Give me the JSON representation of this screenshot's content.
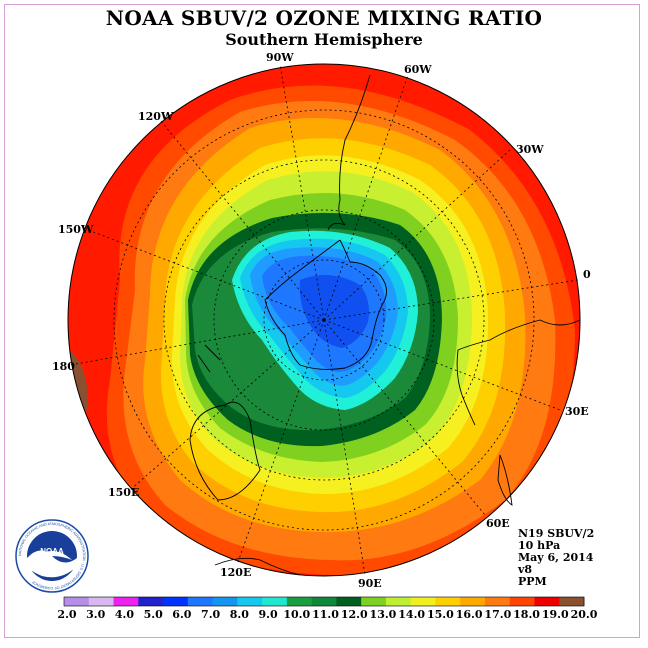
{
  "title": "NOAA SBUV/2 OZONE MIXING RATIO",
  "subtitle": "Southern Hemisphere",
  "logo_text": "NOAA",
  "logo_ring_text": "NATIONAL OCEANIC AND ATMOSPHERIC ADMINISTRATION · U.S. DEPARTMENT OF COMMERCE",
  "longitude_labels": {
    "lon_90w": "90W",
    "lon_60w": "60W",
    "lon_120w": "120W",
    "lon_30w": "30W",
    "lon_150w": "150W",
    "lon_0": "0",
    "lon_180": "180",
    "lon_30e": "30E",
    "lon_150e": "150E",
    "lon_60e": "60E",
    "lon_120e": "120E",
    "lon_90e": "90E"
  },
  "info": {
    "instrument": "N19 SBUV/2",
    "level": "10 hPa",
    "date": "May 6, 2014",
    "version": "v8",
    "units": "PPM"
  },
  "colorbar": {
    "labels": [
      "2.0",
      "3.0",
      "4.0",
      "5.0",
      "6.0",
      "7.0",
      "8.0",
      "9.0",
      "10.0",
      "11.0",
      "12.0",
      "13.0",
      "14.0",
      "15.0",
      "16.0",
      "17.0",
      "18.0",
      "19.0",
      "20.0"
    ],
    "colors": [
      "#b48ee8",
      "#d9b8f0",
      "#ee22ee",
      "#2222cc",
      "#0033ff",
      "#1e78ff",
      "#1496f0",
      "#14c8f0",
      "#20e8d0",
      "#18a040",
      "#10883a",
      "#006020",
      "#80d020",
      "#bef030",
      "#f0f020",
      "#ffd000",
      "#ffa800",
      "#ff7a10",
      "#ff4400",
      "#ee0000",
      "#8a5030"
    ]
  },
  "map_colors": {
    "outer_red": "#ff1a00",
    "orange_red": "#ff4a00",
    "orange": "#ff7a10",
    "light_orange": "#ffa800",
    "gold": "#ffd000",
    "yellow": "#f6f020",
    "yellow_green": "#c8f030",
    "green": "#80d020",
    "dark_green": "#1a8a3a",
    "darkest_green": "#006020",
    "aqua": "#20f0d8",
    "cyan": "#14c8f0",
    "sky": "#1e9cff",
    "blue": "#1e78ff",
    "deep_blue": "#1050f0",
    "brown": "#8a5030"
  }
}
